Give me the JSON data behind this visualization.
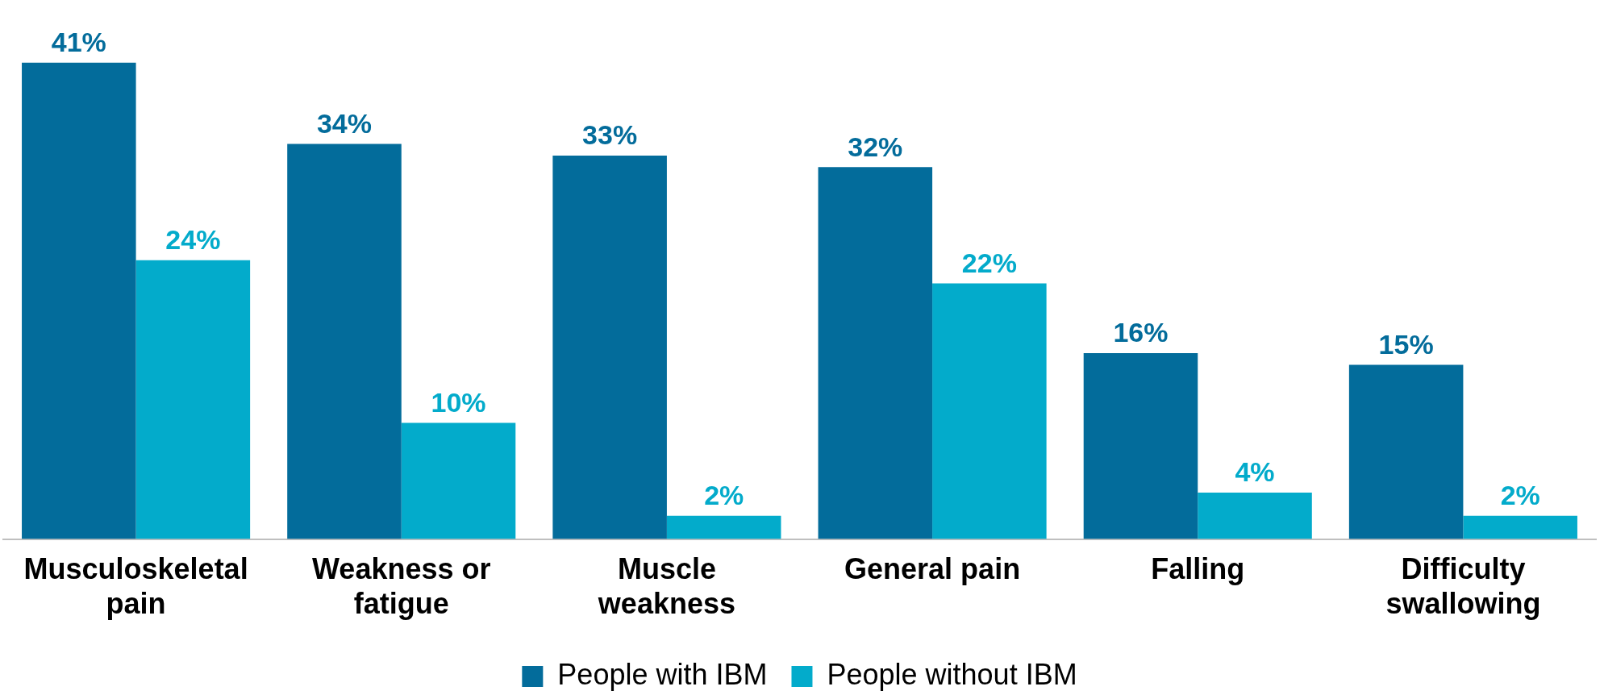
{
  "chart_data": {
    "type": "bar",
    "categories": [
      "Musculoskeletal pain",
      "Weakness or fatigue",
      "Muscle weakness",
      "General pain",
      "Falling",
      "Difficulty swallowing"
    ],
    "series": [
      {
        "name": "People with IBM",
        "color": "#036c9b",
        "values": [
          41,
          34,
          33,
          32,
          16,
          15
        ],
        "value_labels": [
          "41%",
          "34%",
          "33%",
          "32%",
          "16%",
          "15%"
        ]
      },
      {
        "name": "People without IBM",
        "color": "#03abcb",
        "values": [
          24,
          10,
          2,
          22,
          4,
          2
        ],
        "value_labels": [
          "24%",
          "10%",
          "2%",
          "22%",
          "4%",
          "2%"
        ]
      }
    ],
    "grid": false,
    "legend": "bottom"
  }
}
